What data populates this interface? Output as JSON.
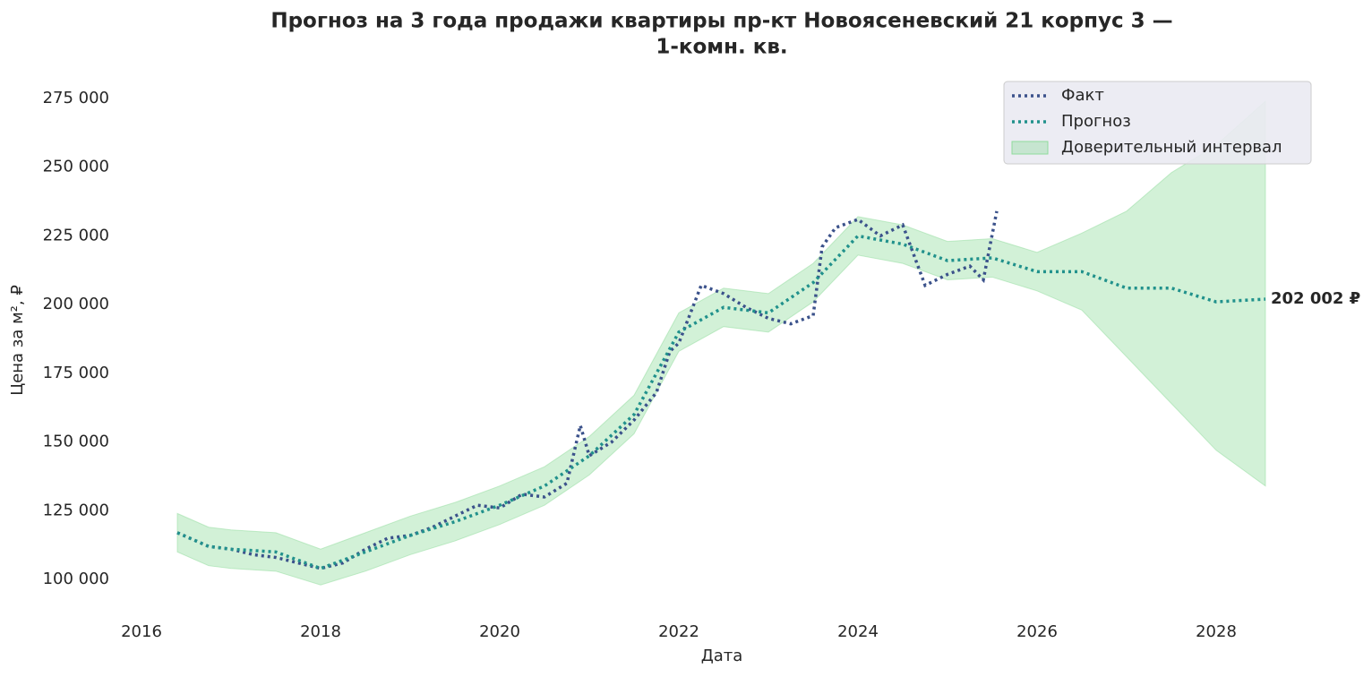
{
  "chart_data": {
    "type": "line",
    "title": [
      "Прогноз на 3 года продажи квартиры  пр-кт Новоясеневский 21 корпус 3 —",
      "1-комн. кв."
    ],
    "x_label": "Дата",
    "y_label": "Цена за м², ₽",
    "xlim": [
      2015.7,
      2029.5
    ],
    "xticks": [
      2016,
      2018,
      2020,
      2022,
      2024,
      2026,
      2028
    ],
    "ylim": [
      86000,
      282000
    ],
    "yticks": [
      {
        "value": 100000,
        "label": "100 000"
      },
      {
        "value": 125000,
        "label": "125 000"
      },
      {
        "value": 150000,
        "label": "150 000"
      },
      {
        "value": 175000,
        "label": "175 000"
      },
      {
        "value": 200000,
        "label": "200 000"
      },
      {
        "value": 225000,
        "label": "225 000"
      },
      {
        "value": 250000,
        "label": "250 000"
      },
      {
        "value": 275000,
        "label": "275 000"
      }
    ],
    "grid": false,
    "legend": "upper right",
    "series": [
      {
        "name": "Факт",
        "color": "#3b528b",
        "x": [
          2016.4,
          2016.75,
          2017.0,
          2017.25,
          2017.5,
          2017.75,
          2018.0,
          2018.25,
          2018.5,
          2018.75,
          2019.0,
          2019.25,
          2019.5,
          2019.75,
          2020.0,
          2020.25,
          2020.5,
          2020.75,
          2020.9,
          2021.0,
          2021.25,
          2021.5,
          2021.75,
          2021.9,
          2022.0,
          2022.25,
          2022.5,
          2022.75,
          2023.0,
          2023.25,
          2023.5,
          2023.6,
          2023.75,
          2024.0,
          2024.25,
          2024.5,
          2024.75,
          2025.0,
          2025.25,
          2025.4,
          2025.55
        ],
        "values": [
          117000,
          112000,
          111000,
          109000,
          108000,
          106000,
          104000,
          106000,
          111000,
          115000,
          116000,
          119000,
          123000,
          127000,
          126000,
          131000,
          130000,
          135000,
          156000,
          145000,
          150000,
          158000,
          168000,
          183000,
          186000,
          207000,
          204000,
          199000,
          195000,
          193000,
          196000,
          221000,
          228000,
          231000,
          225000,
          229000,
          207000,
          211000,
          214000,
          209000,
          234000
        ]
      },
      {
        "name": "Прогноз",
        "color": "#21918c",
        "x": [
          2016.4,
          2016.75,
          2017.0,
          2017.5,
          2018.0,
          2018.5,
          2019.0,
          2019.5,
          2020.0,
          2020.5,
          2021.0,
          2021.5,
          2022.0,
          2022.5,
          2023.0,
          2023.5,
          2024.0,
          2024.5,
          2025.0,
          2025.5,
          2026.0,
          2026.5,
          2027.0,
          2027.5,
          2028.0,
          2028.55
        ],
        "values": [
          117000,
          112000,
          111000,
          110000,
          104000,
          110000,
          116000,
          121000,
          127000,
          134000,
          145000,
          160000,
          190000,
          199000,
          197000,
          208000,
          225000,
          222000,
          216000,
          217000,
          212000,
          212000,
          206000,
          206000,
          201000,
          202002
        ]
      }
    ],
    "band": {
      "name": "Доверительный интервал",
      "color": "#8fdb9c",
      "lower": [
        110000,
        105000,
        104000,
        103000,
        98000,
        103000,
        109000,
        114000,
        120000,
        127000,
        138000,
        153000,
        183000,
        192000,
        190000,
        201000,
        218000,
        215000,
        209000,
        210000,
        205000,
        198000,
        181000,
        164000,
        147000,
        134000
      ],
      "upper": [
        124000,
        119000,
        118000,
        117000,
        111000,
        117000,
        123000,
        128000,
        134000,
        141000,
        152000,
        167000,
        197000,
        206000,
        204000,
        215000,
        232000,
        229000,
        223000,
        224000,
        219000,
        226000,
        234000,
        248000,
        258000,
        274000
      ]
    },
    "annotation": {
      "label": "202 002 ₽",
      "x": 2028.55,
      "value": 202002,
      "color": "#21918c"
    }
  }
}
